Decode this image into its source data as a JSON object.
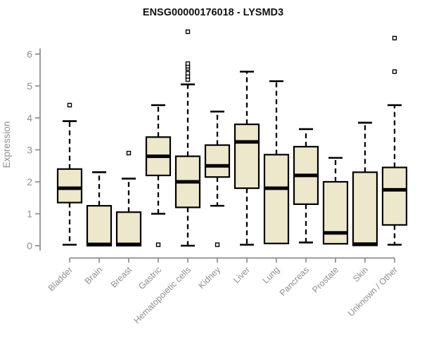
{
  "chart_data": {
    "type": "boxplot",
    "title": "ENSG00000176018 - LYSMD3",
    "xlabel": "",
    "ylabel": "Expression",
    "ylim": [
      0,
      6
    ],
    "yticks": [
      0,
      1,
      2,
      3,
      4,
      5,
      6
    ],
    "grid": false,
    "legend": "none",
    "categories": [
      "Bladder",
      "Brain",
      "Breast",
      "Gastric",
      "Hematopoietic cells",
      "Kidney",
      "Liver",
      "Lung",
      "Pancreas",
      "Prostate",
      "Skin",
      "Unknown / Other"
    ],
    "series": [
      {
        "name": "Bladder",
        "min": 0.03,
        "q1": 1.35,
        "median": 1.8,
        "q3": 2.4,
        "max": 3.9,
        "outliers": [
          4.4
        ]
      },
      {
        "name": "Brain",
        "min": 0.0,
        "q1": 0.0,
        "median": 0.04,
        "q3": 1.25,
        "max": 2.3,
        "outliers": []
      },
      {
        "name": "Breast",
        "min": 0.0,
        "q1": 0.0,
        "median": 0.04,
        "q3": 1.05,
        "max": 2.1,
        "outliers": [
          2.9
        ]
      },
      {
        "name": "Gastric",
        "min": 1.0,
        "q1": 2.2,
        "median": 2.8,
        "q3": 3.4,
        "max": 4.4,
        "outliers": [
          0.03
        ]
      },
      {
        "name": "Hematopoietic cells",
        "min": 0.0,
        "q1": 1.2,
        "median": 2.0,
        "q3": 2.8,
        "max": 5.05,
        "outliers": [
          5.2,
          5.3,
          5.4,
          5.55,
          5.62,
          5.7,
          6.7
        ]
      },
      {
        "name": "Kidney",
        "min": 1.25,
        "q1": 2.15,
        "median": 2.5,
        "q3": 3.15,
        "max": 4.2,
        "outliers": [
          0.03
        ]
      },
      {
        "name": "Liver",
        "min": 0.03,
        "q1": 1.8,
        "median": 3.25,
        "q3": 3.8,
        "max": 5.45,
        "outliers": []
      },
      {
        "name": "Lung",
        "min": 0.05,
        "q1": 0.07,
        "median": 1.8,
        "q3": 2.85,
        "max": 5.15,
        "outliers": []
      },
      {
        "name": "Pancreas",
        "min": 0.1,
        "q1": 1.3,
        "median": 2.2,
        "q3": 3.1,
        "max": 3.65,
        "outliers": []
      },
      {
        "name": "Prostate",
        "min": 0.03,
        "q1": 0.06,
        "median": 0.4,
        "q3": 2.0,
        "max": 2.75,
        "outliers": []
      },
      {
        "name": "Skin",
        "min": 0.0,
        "q1": 0.01,
        "median": 0.05,
        "q3": 2.3,
        "max": 3.85,
        "outliers": []
      },
      {
        "name": "Unknown / Other",
        "min": 0.03,
        "q1": 0.65,
        "median": 1.75,
        "q3": 2.45,
        "max": 4.4,
        "outliers": [
          5.45,
          6.5
        ]
      }
    ],
    "colors": {
      "box_fill": "#EDE7CB",
      "box_stroke": "#000000",
      "median": "#000000",
      "whisker": "#000000",
      "outlier_stroke": "#000000",
      "axis": "#8A8A8A",
      "tick_label": "#8E8E8E",
      "title": "#111111",
      "background": "#FFFFFF"
    }
  }
}
